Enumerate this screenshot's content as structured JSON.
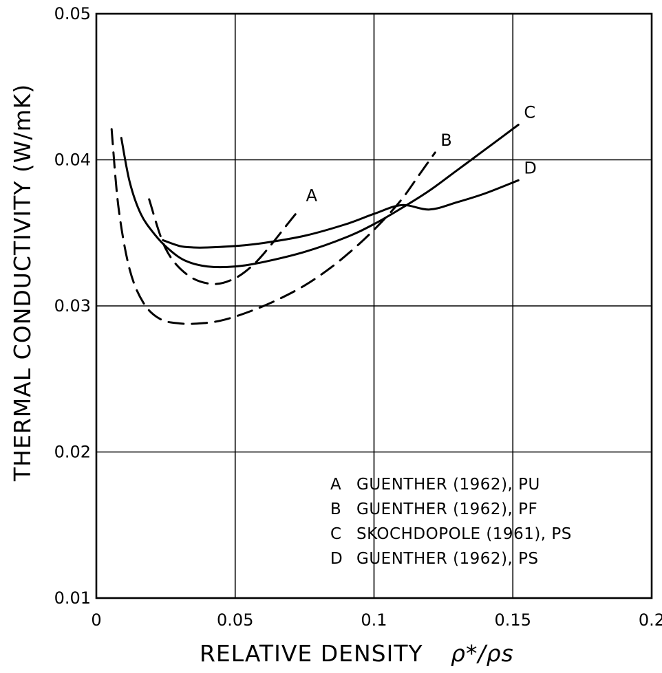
{
  "chart_data": {
    "type": "line",
    "xlabel": "RELATIVE DENSITY",
    "xlabel_symbol": "ρ*/ρs",
    "ylabel": "THERMAL CONDUCTIVITY (W/mK)",
    "xlim": [
      0,
      0.2
    ],
    "ylim": [
      0.01,
      0.05
    ],
    "x_ticks": [
      {
        "value": 0,
        "label": "0"
      },
      {
        "value": 0.05,
        "label": "0.05"
      },
      {
        "value": 0.1,
        "label": "0.1"
      },
      {
        "value": 0.15,
        "label": "0.15"
      },
      {
        "value": 0.2,
        "label": "0.2"
      }
    ],
    "y_ticks": [
      {
        "value": 0.01,
        "label": "0.01"
      },
      {
        "value": 0.02,
        "label": "0.02"
      },
      {
        "value": 0.03,
        "label": "0.03"
      },
      {
        "value": 0.04,
        "label": "0.04"
      },
      {
        "value": 0.05,
        "label": "0.05"
      }
    ],
    "grid": true,
    "legend_position": "lower-right",
    "series": [
      {
        "name": "A",
        "dashed": true,
        "x": [
          0.019,
          0.025,
          0.033,
          0.042,
          0.05,
          0.057,
          0.063,
          0.068,
          0.0735
        ],
        "y": [
          0.0373,
          0.0339,
          0.0321,
          0.0315,
          0.0319,
          0.0329,
          0.0342,
          0.0354,
          0.0367
        ]
      },
      {
        "name": "B",
        "dashed": true,
        "x": [
          0.0055,
          0.008,
          0.012,
          0.017,
          0.023,
          0.03,
          0.037,
          0.045,
          0.055,
          0.065,
          0.075,
          0.085,
          0.095,
          0.103,
          0.11,
          0.116,
          0.122
        ],
        "y": [
          0.0421,
          0.0367,
          0.0325,
          0.0302,
          0.0291,
          0.0288,
          0.0288,
          0.029,
          0.0296,
          0.0304,
          0.0314,
          0.0327,
          0.0343,
          0.0358,
          0.0373,
          0.0389,
          0.0405
        ]
      },
      {
        "name": "C",
        "dashed": false,
        "x": [
          0.009,
          0.012,
          0.016,
          0.021,
          0.026,
          0.032,
          0.04,
          0.05,
          0.06,
          0.075,
          0.09,
          0.1,
          0.11,
          0.12,
          0.13,
          0.14,
          0.152
        ],
        "y": [
          0.0415,
          0.0385,
          0.0363,
          0.0349,
          0.0339,
          0.0331,
          0.0327,
          0.0327,
          0.033,
          0.0337,
          0.0347,
          0.0356,
          0.0367,
          0.0379,
          0.0393,
          0.0407,
          0.0424
        ]
      },
      {
        "name": "D",
        "dashed": false,
        "x": [
          0.024,
          0.03,
          0.035,
          0.04,
          0.05,
          0.06,
          0.075,
          0.09,
          0.1,
          0.11,
          0.12,
          0.13,
          0.14,
          0.152
        ],
        "y": [
          0.0345,
          0.0341,
          0.034,
          0.034,
          0.0341,
          0.0343,
          0.0348,
          0.0356,
          0.0363,
          0.0369,
          0.0366,
          0.0371,
          0.0377,
          0.0386
        ]
      }
    ],
    "legend": [
      {
        "key": "A",
        "text": "GUENTHER (1962), PU"
      },
      {
        "key": "B",
        "text": "GUENTHER (1962), PF"
      },
      {
        "key": "C",
        "text": "SKOCHDOPOLE (1961), PS"
      },
      {
        "key": "D",
        "text": "GUENTHER (1962), PS"
      }
    ]
  }
}
